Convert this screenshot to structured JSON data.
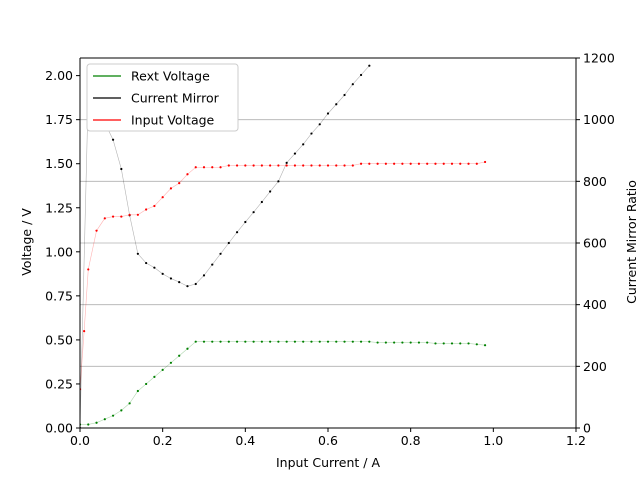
{
  "chart_data": {
    "type": "line",
    "xlabel": "Input Current / A",
    "ylabel": "Voltage / V",
    "y2label": "Current Mirror Ratio",
    "xlim": [
      0,
      1.2
    ],
    "ylim": [
      0,
      2.1
    ],
    "y2lim": [
      0,
      1200
    ],
    "xticks": [
      "0.0",
      "0.2",
      "0.4",
      "0.6",
      "0.8",
      "1.0",
      "1.2"
    ],
    "yticks": [
      "0.00",
      "0.25",
      "0.50",
      "0.75",
      "1.00",
      "1.25",
      "1.50",
      "1.75",
      "2.00"
    ],
    "y2ticks": [
      "0",
      "200",
      "400",
      "600",
      "800",
      "1000",
      "1200"
    ],
    "grid": "horizontal lines at right-axis ticks",
    "legend_position": "top-left",
    "series": [
      {
        "name": "Rext Voltage",
        "axis": "left",
        "color": "#008000",
        "x": [
          0.0,
          0.02,
          0.04,
          0.06,
          0.08,
          0.1,
          0.12,
          0.14,
          0.16,
          0.18,
          0.2,
          0.22,
          0.24,
          0.26,
          0.28,
          0.3,
          0.32,
          0.34,
          0.36,
          0.38,
          0.4,
          0.42,
          0.44,
          0.46,
          0.48,
          0.5,
          0.52,
          0.54,
          0.56,
          0.58,
          0.6,
          0.62,
          0.64,
          0.66,
          0.68,
          0.7,
          0.72,
          0.74,
          0.76,
          0.78,
          0.8,
          0.82,
          0.84,
          0.86,
          0.88,
          0.9,
          0.92,
          0.94,
          0.96,
          0.98
        ],
        "y": [
          0.02,
          0.02,
          0.03,
          0.05,
          0.07,
          0.1,
          0.14,
          0.21,
          0.25,
          0.29,
          0.33,
          0.37,
          0.41,
          0.45,
          0.49,
          0.49,
          0.49,
          0.49,
          0.49,
          0.49,
          0.49,
          0.49,
          0.49,
          0.49,
          0.49,
          0.49,
          0.49,
          0.49,
          0.49,
          0.49,
          0.49,
          0.49,
          0.49,
          0.49,
          0.49,
          0.49,
          0.485,
          0.485,
          0.485,
          0.485,
          0.485,
          0.485,
          0.485,
          0.48,
          0.48,
          0.48,
          0.48,
          0.48,
          0.475,
          0.47
        ]
      },
      {
        "name": "Current Mirror",
        "axis": "right",
        "color": "#000000",
        "x": [
          0.0,
          0.02,
          0.04,
          0.06,
          0.08,
          0.1,
          0.12,
          0.14,
          0.16,
          0.18,
          0.2,
          0.22,
          0.24,
          0.26,
          0.28,
          0.3,
          0.32,
          0.34,
          0.36,
          0.38,
          0.4,
          0.42,
          0.44,
          0.46,
          0.48,
          0.5,
          0.52,
          0.54,
          0.56,
          0.58,
          0.6,
          0.62,
          0.64,
          0.66,
          0.68,
          0.7
        ],
        "y": [
          0,
          1090,
          1030,
          990,
          935,
          840,
          690,
          565,
          535,
          520,
          500,
          485,
          473,
          460,
          467,
          495,
          530,
          565,
          600,
          635,
          668,
          700,
          733,
          767,
          800,
          860,
          890,
          920,
          955,
          985,
          1020,
          1050,
          1080,
          1115,
          1145,
          1175
        ]
      },
      {
        "name": "Input Voltage",
        "axis": "left",
        "color": "#ff0000",
        "x": [
          0.0,
          0.01,
          0.02,
          0.04,
          0.06,
          0.08,
          0.1,
          0.12,
          0.14,
          0.16,
          0.18,
          0.2,
          0.22,
          0.24,
          0.26,
          0.28,
          0.3,
          0.32,
          0.34,
          0.36,
          0.38,
          0.4,
          0.42,
          0.44,
          0.46,
          0.48,
          0.5,
          0.52,
          0.54,
          0.56,
          0.58,
          0.6,
          0.62,
          0.64,
          0.66,
          0.68,
          0.7,
          0.72,
          0.74,
          0.76,
          0.78,
          0.8,
          0.82,
          0.84,
          0.86,
          0.88,
          0.9,
          0.92,
          0.94,
          0.96,
          0.98
        ],
        "y": [
          0.22,
          0.55,
          0.9,
          1.12,
          1.19,
          1.2,
          1.2,
          1.21,
          1.21,
          1.24,
          1.26,
          1.31,
          1.36,
          1.39,
          1.44,
          1.48,
          1.48,
          1.48,
          1.48,
          1.49,
          1.49,
          1.49,
          1.49,
          1.49,
          1.49,
          1.49,
          1.49,
          1.49,
          1.49,
          1.49,
          1.49,
          1.49,
          1.49,
          1.49,
          1.49,
          1.5,
          1.5,
          1.5,
          1.5,
          1.5,
          1.5,
          1.5,
          1.5,
          1.5,
          1.5,
          1.5,
          1.5,
          1.5,
          1.5,
          1.5,
          1.51
        ]
      }
    ]
  }
}
